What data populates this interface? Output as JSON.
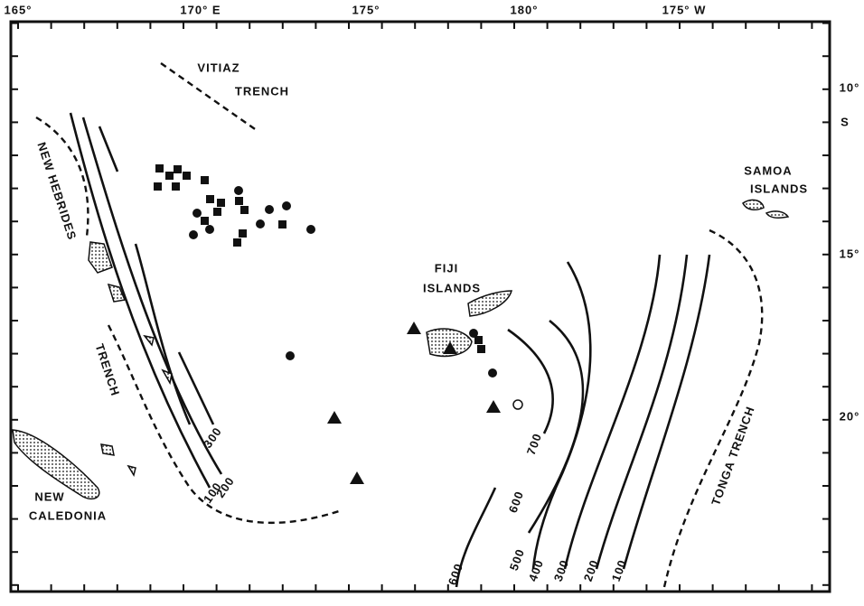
{
  "map": {
    "longitude_labels": [
      "165°",
      "170° E",
      "175°",
      "180°",
      "175° W"
    ],
    "latitude_labels": [
      "10°",
      "S",
      "15°",
      "20°"
    ],
    "places": {
      "vitiaz": [
        "VITIAZ",
        "TRENCH"
      ],
      "new_hebrides": "NEW HEBRIDES",
      "new_hebrides_trench": "TRENCH",
      "new_caledonia": [
        "NEW",
        "CALEDONIA"
      ],
      "fiji": [
        "FIJI",
        "ISLANDS"
      ],
      "samoa": [
        "SAMOA",
        "ISLANDS"
      ],
      "tonga": "TONGA TRENCH"
    },
    "depth_contours_west": [
      300,
      200,
      100
    ],
    "depth_contours_east": [
      700,
      600,
      600,
      500,
      400,
      300,
      200,
      100
    ]
  }
}
